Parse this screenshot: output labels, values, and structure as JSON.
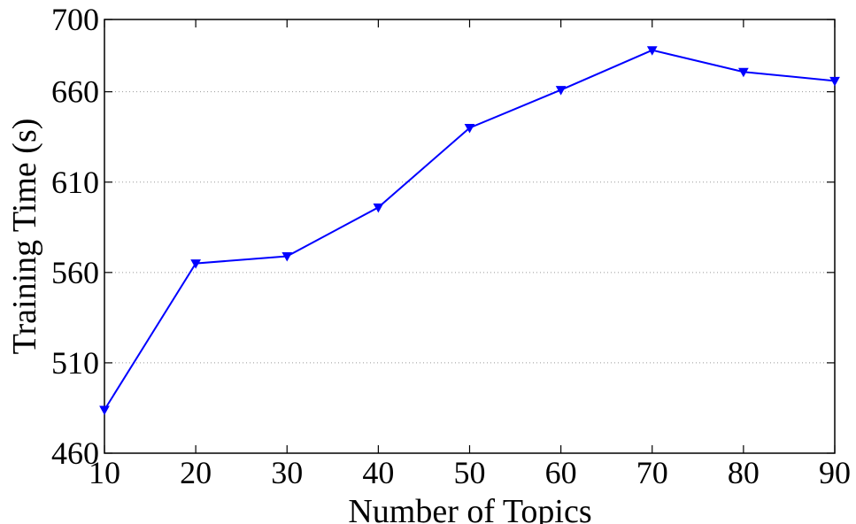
{
  "chart_data": {
    "type": "line",
    "xlabel": "Number of Topics",
    "ylabel": "Training Time (s)",
    "xlim": [
      10,
      90
    ],
    "ylim": [
      460,
      700
    ],
    "xticks": [
      10,
      20,
      30,
      40,
      50,
      60,
      70,
      80,
      90
    ],
    "yticks": [
      460,
      510,
      560,
      610,
      660,
      700
    ],
    "grid": "horizontal-dotted",
    "series": [
      {
        "color": "#0000ff",
        "marker": "triangle-down",
        "x": [
          10,
          20,
          30,
          40,
          50,
          60,
          70,
          80,
          90
        ],
        "y": [
          484,
          565,
          569,
          596,
          640,
          661,
          683,
          671,
          666
        ]
      }
    ]
  }
}
